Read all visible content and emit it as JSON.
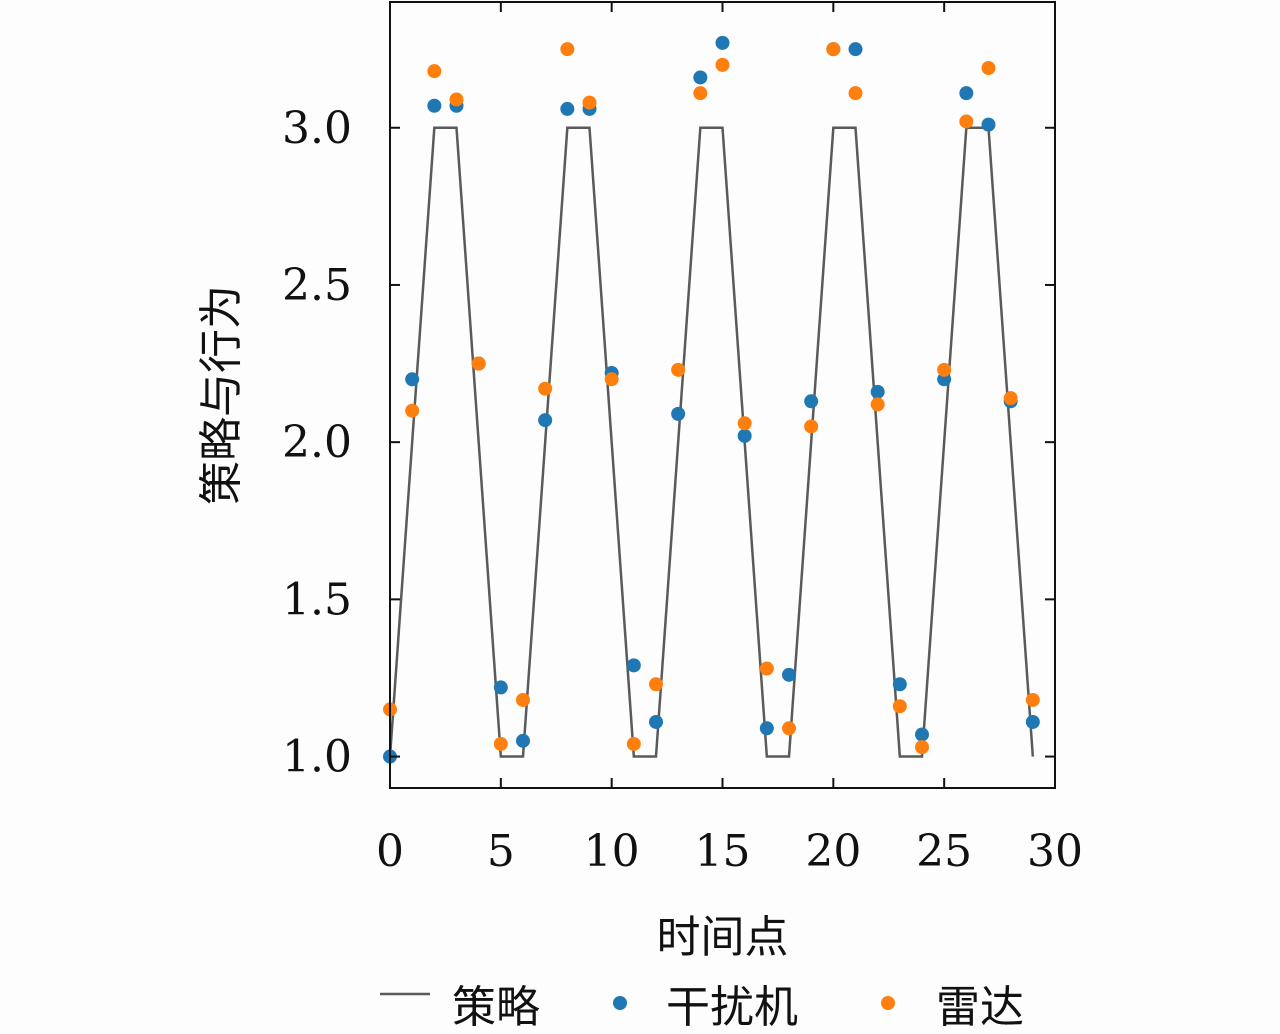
{
  "chart_data": {
    "type": "line",
    "xlabel": "时间点",
    "ylabel": "策略与行为",
    "xlim": [
      0,
      30
    ],
    "ylim": [
      0.9,
      3.4
    ],
    "xticks": [
      0,
      5,
      10,
      15,
      20,
      25,
      30
    ],
    "yticks": [
      1.0,
      1.5,
      2.0,
      2.5,
      3.0
    ],
    "xtick_labels": [
      "0",
      "5",
      "10",
      "15",
      "20",
      "25",
      "30"
    ],
    "ytick_labels": [
      "1.0",
      "1.5",
      "2.0",
      "2.5",
      "3.0"
    ],
    "grid": false,
    "legend": {
      "position": "bottom",
      "entries": [
        "策略",
        "干扰机",
        "雷达"
      ]
    },
    "series": [
      {
        "name": "策略",
        "kind": "line",
        "color": "#5a5a5a",
        "x": [
          0,
          1,
          2,
          3,
          4,
          5,
          6,
          7,
          8,
          9,
          10,
          11,
          12,
          13,
          14,
          15,
          16,
          17,
          18,
          19,
          20,
          21,
          22,
          23,
          24,
          25,
          26,
          27,
          28,
          29
        ],
        "y": [
          1,
          2,
          3,
          3,
          2,
          1,
          1,
          2,
          3,
          3,
          2,
          1,
          1,
          2,
          3,
          3,
          2,
          1,
          1,
          2,
          3,
          3,
          2,
          1,
          1,
          2,
          3,
          3,
          2,
          1
        ]
      },
      {
        "name": "干扰机",
        "kind": "scatter",
        "color": "#1f77b4",
        "x": [
          0,
          1,
          2,
          3,
          4,
          5,
          6,
          7,
          8,
          9,
          10,
          11,
          12,
          13,
          14,
          15,
          16,
          17,
          18,
          19,
          20,
          21,
          22,
          23,
          24,
          25,
          26,
          27,
          28,
          29
        ],
        "y": [
          1.0,
          2.2,
          3.07,
          3.07,
          2.25,
          1.22,
          1.05,
          2.07,
          3.06,
          3.06,
          2.22,
          1.29,
          1.11,
          2.09,
          3.16,
          3.27,
          2.02,
          1.09,
          1.26,
          2.13,
          3.25,
          3.25,
          2.16,
          1.23,
          1.07,
          2.2,
          3.11,
          3.01,
          2.13,
          1.11
        ]
      },
      {
        "name": "雷达",
        "kind": "scatter",
        "color": "#ff7f0e",
        "x": [
          0,
          1,
          2,
          3,
          4,
          5,
          6,
          7,
          8,
          9,
          10,
          11,
          12,
          13,
          14,
          15,
          16,
          17,
          18,
          19,
          20,
          21,
          22,
          23,
          24,
          25,
          26,
          27,
          28,
          29
        ],
        "y": [
          1.15,
          2.1,
          3.18,
          3.09,
          2.25,
          1.04,
          1.18,
          2.17,
          3.25,
          3.08,
          2.2,
          1.04,
          1.23,
          2.23,
          3.11,
          3.2,
          2.06,
          1.28,
          1.09,
          2.05,
          3.25,
          3.11,
          2.12,
          1.16,
          1.03,
          2.23,
          3.02,
          3.19,
          2.14,
          1.18
        ]
      }
    ]
  }
}
